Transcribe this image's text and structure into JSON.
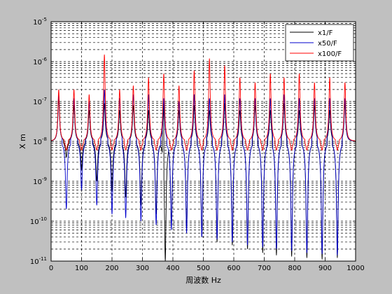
{
  "colors": {
    "figure_bg": "#c0c0c0",
    "axes_bg": "#ffffff",
    "grid": "#000000",
    "legend_bg": "#ffffff"
  },
  "chart_data": {
    "type": "line",
    "title": "",
    "xlabel": "周波数 Hz",
    "ylabel": "X m",
    "xlim": [
      0,
      1000
    ],
    "ylim": [
      1e-11,
      1e-05
    ],
    "yscale": "log",
    "grid": true,
    "grid_minor": true,
    "legend_position": "top-right",
    "xticks": [
      0,
      100,
      200,
      300,
      400,
      500,
      600,
      700,
      800,
      900,
      1000
    ],
    "xtick_labels": [
      "0",
      "100",
      "200",
      "300",
      "400",
      "500",
      "600",
      "700",
      "800",
      "900",
      "1000"
    ],
    "yticks": [
      1e-11,
      1e-10,
      1e-09,
      1e-08,
      1e-07,
      1e-06,
      1e-05
    ],
    "ytick_labels": [
      {
        "base": "10",
        "exp": "-11"
      },
      {
        "base": "10",
        "exp": "-10"
      },
      {
        "base": "10",
        "exp": "-9"
      },
      {
        "base": "10",
        "exp": "-8"
      },
      {
        "base": "10",
        "exp": "-7"
      },
      {
        "base": "10",
        "exp": "-6"
      },
      {
        "base": "10",
        "exp": "-5"
      }
    ],
    "series": [
      {
        "name": "x1/F",
        "color": "#000000",
        "baseline": 1e-08,
        "peaks": [
          {
            "x": 25,
            "y": 1.2e-07
          },
          {
            "x": 75,
            "y": 8e-08
          },
          {
            "x": 125,
            "y": 6e-08
          },
          {
            "x": 175,
            "y": 9e-08
          },
          {
            "x": 225,
            "y": 6e-08
          },
          {
            "x": 270,
            "y": 8e-08
          },
          {
            "x": 320,
            "y": 6e-08
          },
          {
            "x": 370,
            "y": 9e-08
          },
          {
            "x": 420,
            "y": 6e-08
          },
          {
            "x": 470,
            "y": 8e-08
          },
          {
            "x": 520,
            "y": 6e-08
          },
          {
            "x": 570,
            "y": 9e-08
          },
          {
            "x": 620,
            "y": 6e-08
          },
          {
            "x": 670,
            "y": 8e-08
          },
          {
            "x": 720,
            "y": 6e-08
          },
          {
            "x": 765,
            "y": 9e-08
          },
          {
            "x": 815,
            "y": 6e-08
          },
          {
            "x": 865,
            "y": 8e-08
          },
          {
            "x": 915,
            "y": 6e-08
          },
          {
            "x": 965,
            "y": 9e-08
          }
        ],
        "dips": [
          {
            "x": 50,
            "y": 4e-09
          },
          {
            "x": 100,
            "y": 2e-09
          },
          {
            "x": 150,
            "y": 1e-09
          },
          {
            "x": 200,
            "y": 6e-10
          },
          {
            "x": 245,
            "y": 4e-10
          },
          {
            "x": 295,
            "y": 2.5e-10
          },
          {
            "x": 345,
            "y": 1.5e-10
          },
          {
            "x": 375,
            "y": 1e-11
          },
          {
            "x": 395,
            "y": 8e-11
          },
          {
            "x": 445,
            "y": 6e-11
          },
          {
            "x": 495,
            "y": 4e-11
          },
          {
            "x": 545,
            "y": 3e-11
          },
          {
            "x": 595,
            "y": 2.5e-11
          },
          {
            "x": 645,
            "y": 2e-11
          },
          {
            "x": 695,
            "y": 1.6e-11
          },
          {
            "x": 740,
            "y": 1.4e-11
          },
          {
            "x": 790,
            "y": 1.3e-11
          },
          {
            "x": 840,
            "y": 1.2e-11
          },
          {
            "x": 890,
            "y": 1.1e-11
          },
          {
            "x": 940,
            "y": 1.2e-11
          }
        ]
      },
      {
        "name": "x50/F",
        "color": "#0000cc",
        "baseline": 1e-08,
        "peaks": [
          {
            "x": 25,
            "y": 1.5e-07
          },
          {
            "x": 75,
            "y": 1.2e-07
          },
          {
            "x": 125,
            "y": 1e-07
          },
          {
            "x": 175,
            "y": 2e-07
          },
          {
            "x": 225,
            "y": 1.2e-07
          },
          {
            "x": 270,
            "y": 1.5e-07
          },
          {
            "x": 320,
            "y": 1.5e-07
          },
          {
            "x": 370,
            "y": 1.2e-07
          },
          {
            "x": 420,
            "y": 1e-07
          },
          {
            "x": 470,
            "y": 1.5e-07
          },
          {
            "x": 520,
            "y": 1.2e-07
          },
          {
            "x": 570,
            "y": 1.5e-07
          },
          {
            "x": 620,
            "y": 1.2e-07
          },
          {
            "x": 670,
            "y": 1.2e-07
          },
          {
            "x": 720,
            "y": 1.2e-07
          },
          {
            "x": 765,
            "y": 1.5e-07
          },
          {
            "x": 815,
            "y": 1.2e-07
          },
          {
            "x": 865,
            "y": 1.2e-07
          },
          {
            "x": 915,
            "y": 1.2e-07
          },
          {
            "x": 965,
            "y": 1.2e-07
          }
        ],
        "dips": [
          {
            "x": 50,
            "y": 2e-10
          },
          {
            "x": 100,
            "y": 6e-10
          },
          {
            "x": 150,
            "y": 2.5e-10
          },
          {
            "x": 200,
            "y": 1.5e-10
          },
          {
            "x": 245,
            "y": 1.2e-10
          },
          {
            "x": 295,
            "y": 1e-10
          },
          {
            "x": 345,
            "y": 8e-11
          },
          {
            "x": 395,
            "y": 6e-11
          },
          {
            "x": 445,
            "y": 5e-11
          },
          {
            "x": 495,
            "y": 4e-11
          },
          {
            "x": 545,
            "y": 3.5e-11
          },
          {
            "x": 595,
            "y": 3e-11
          },
          {
            "x": 645,
            "y": 2.5e-11
          },
          {
            "x": 695,
            "y": 2.2e-11
          },
          {
            "x": 740,
            "y": 2e-11
          },
          {
            "x": 790,
            "y": 1.8e-11
          },
          {
            "x": 840,
            "y": 1.6e-11
          },
          {
            "x": 890,
            "y": 1.5e-11
          },
          {
            "x": 940,
            "y": 1.4e-11
          }
        ]
      },
      {
        "name": "x100/F",
        "color": "#ff0000",
        "baseline": 1e-08,
        "peaks": [
          {
            "x": 25,
            "y": 2e-07
          },
          {
            "x": 75,
            "y": 2e-07
          },
          {
            "x": 125,
            "y": 1.5e-07
          },
          {
            "x": 175,
            "y": 1.5e-06
          },
          {
            "x": 225,
            "y": 2e-07
          },
          {
            "x": 270,
            "y": 2.5e-07
          },
          {
            "x": 320,
            "y": 4e-07
          },
          {
            "x": 370,
            "y": 5e-07
          },
          {
            "x": 420,
            "y": 2.5e-07
          },
          {
            "x": 470,
            "y": 6e-07
          },
          {
            "x": 520,
            "y": 1.2e-06
          },
          {
            "x": 570,
            "y": 8e-07
          },
          {
            "x": 620,
            "y": 4e-07
          },
          {
            "x": 670,
            "y": 3e-07
          },
          {
            "x": 720,
            "y": 5e-07
          },
          {
            "x": 765,
            "y": 4e-07
          },
          {
            "x": 815,
            "y": 5e-07
          },
          {
            "x": 865,
            "y": 3e-07
          },
          {
            "x": 915,
            "y": 4e-07
          },
          {
            "x": 965,
            "y": 3e-07
          }
        ],
        "dips": [
          {
            "x": 50,
            "y": 6e-09
          },
          {
            "x": 100,
            "y": 6e-09
          },
          {
            "x": 150,
            "y": 6e-09
          },
          {
            "x": 200,
            "y": 6e-09
          },
          {
            "x": 245,
            "y": 6e-09
          },
          {
            "x": 295,
            "y": 6e-09
          },
          {
            "x": 345,
            "y": 6e-09
          },
          {
            "x": 395,
            "y": 6e-09
          },
          {
            "x": 445,
            "y": 6e-09
          },
          {
            "x": 495,
            "y": 6e-09
          },
          {
            "x": 545,
            "y": 6e-09
          },
          {
            "x": 595,
            "y": 6e-09
          },
          {
            "x": 645,
            "y": 6e-09
          },
          {
            "x": 695,
            "y": 6e-09
          },
          {
            "x": 740,
            "y": 6e-09
          },
          {
            "x": 790,
            "y": 6e-09
          },
          {
            "x": 840,
            "y": 6e-09
          },
          {
            "x": 890,
            "y": 6e-09
          },
          {
            "x": 940,
            "y": 6e-09
          }
        ]
      }
    ]
  }
}
